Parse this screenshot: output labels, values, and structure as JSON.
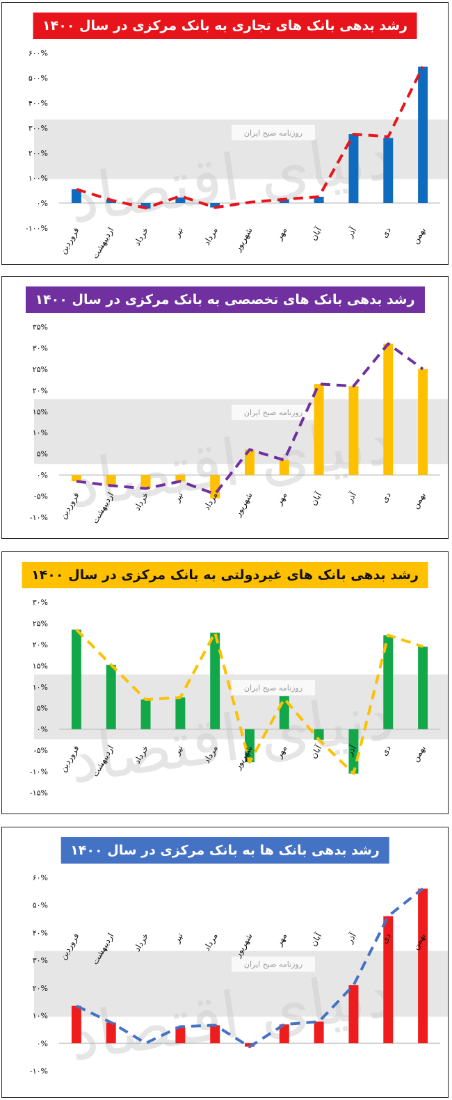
{
  "watermark": {
    "logo_text": "دنیای اقتصاد",
    "source_text": "روزنامه صبح ایران"
  },
  "chart_data": [
    {
      "type": "bar",
      "title": "رشد بدهی بانک های تجاری به بانک مرکزی در سال ۱۴۰۰",
      "title_bg": "#e8141b",
      "title_fg": "#ffffff",
      "bar_color": "#0f6bbd",
      "line_color": "#e8141b",
      "categories": [
        "فروردین",
        "اردیبهشت",
        "خرداد",
        "تیر",
        "مرداد",
        "شهریور",
        "مهر",
        "آبان",
        "آذر",
        "دی",
        "بهمن"
      ],
      "values": [
        55,
        12,
        -22,
        22,
        -18,
        3,
        15,
        25,
        275,
        260,
        545
      ],
      "line_values": [
        55,
        12,
        -20,
        28,
        -18,
        3,
        15,
        25,
        275,
        265,
        545
      ],
      "ylim": [
        -100,
        600
      ],
      "yticks": [
        -100,
        0,
        100,
        200,
        300,
        400,
        500,
        600
      ],
      "ytick_labels": [
        "-۱۰۰%",
        "۰%",
        "۱۰۰%",
        "۲۰۰%",
        "۳۰۰%",
        "۴۰۰%",
        "۵۰۰%",
        "۶۰۰%"
      ]
    },
    {
      "type": "bar",
      "title": "رشد بدهی بانک های تخصصی به بانک مرکزی در سال ۱۴۰۰",
      "title_bg": "#7030a0",
      "title_fg": "#ffffff",
      "bar_color": "#ffc000",
      "line_color": "#7030a0",
      "categories": [
        "فروردین",
        "اردیبهشت",
        "خرداد",
        "تیر",
        "مرداد",
        "شهریور",
        "مهر",
        "آبان",
        "آذر",
        "دی",
        "بهمن"
      ],
      "values": [
        -1.5,
        -2.5,
        -3.2,
        -1.5,
        -5.5,
        6,
        3.5,
        21.5,
        21,
        31,
        25
      ],
      "line_values": [
        -1.5,
        -2.5,
        -3.2,
        -1.5,
        -4.5,
        6,
        3.5,
        21.5,
        21,
        31,
        25
      ],
      "ylim": [
        -10,
        35
      ],
      "yticks": [
        -10,
        -5,
        0,
        5,
        10,
        15,
        20,
        25,
        30,
        35
      ],
      "ytick_labels": [
        "-۱۰%",
        "-۵%",
        "۰%",
        "۵%",
        "۱۰%",
        "۱۵%",
        "۲۰%",
        "۲۵%",
        "۳۰%",
        "۳۵%"
      ]
    },
    {
      "type": "bar",
      "title": "رشد بدهی بانک های غیردولتی به بانک مرکزی در سال ۱۴۰۰",
      "title_bg": "#ffc000",
      "title_fg": "#111111",
      "bar_color": "#12a84a",
      "line_color": "#ffc000",
      "categories": [
        "فروردین",
        "اردیبهشت",
        "خرداد",
        "تیر",
        "مرداد",
        "شهریور",
        "مهر",
        "آبان",
        "آذر",
        "دی",
        "بهمن"
      ],
      "values": [
        23.5,
        15.2,
        7,
        7.5,
        22.8,
        -7.8,
        7.8,
        -2.5,
        -10.5,
        22.2,
        19.5
      ],
      "line_values": [
        23.5,
        15.2,
        7,
        7.5,
        22.8,
        -7.8,
        7.2,
        -2.5,
        -10.5,
        22.2,
        19.5
      ],
      "ylim": [
        -15,
        30
      ],
      "yticks": [
        -15,
        -10,
        -5,
        0,
        5,
        10,
        15,
        20,
        25,
        30
      ],
      "ytick_labels": [
        "-۱۵%",
        "-۱۰%",
        "-۵%",
        "۰%",
        "۵%",
        "۱۰%",
        "۱۵%",
        "۲۰%",
        "۲۵%",
        "۳۰%"
      ]
    },
    {
      "type": "bar",
      "title": "رشد بدهی بانک ها به بانک مرکزی در سال ۱۴۰۰",
      "title_bg": "#4472c4",
      "title_fg": "#ffffff",
      "bar_color": "#ee1c1c",
      "line_color": "#4472c4",
      "categories": [
        "فروردین",
        "اردیبهشت",
        "خرداد",
        "تیر",
        "مرداد",
        "شهریور",
        "مهر",
        "آبان",
        "آذر",
        "دی",
        "بهمن"
      ],
      "values": [
        13.5,
        7.5,
        0,
        6,
        6.5,
        -1.3,
        6.8,
        7.8,
        21,
        46,
        56
      ],
      "line_values": [
        13.5,
        7.5,
        0,
        6,
        6.5,
        -1.3,
        6.8,
        7.8,
        21,
        46,
        56
      ],
      "ylim": [
        -10,
        60
      ],
      "yticks": [
        -10,
        0,
        10,
        20,
        30,
        40,
        50,
        60
      ],
      "ytick_labels": [
        "-۱۰%",
        "۰%",
        "۱۰%",
        "۲۰%",
        "۳۰%",
        "۴۰%",
        "۵۰%",
        "۶۰%"
      ]
    }
  ]
}
